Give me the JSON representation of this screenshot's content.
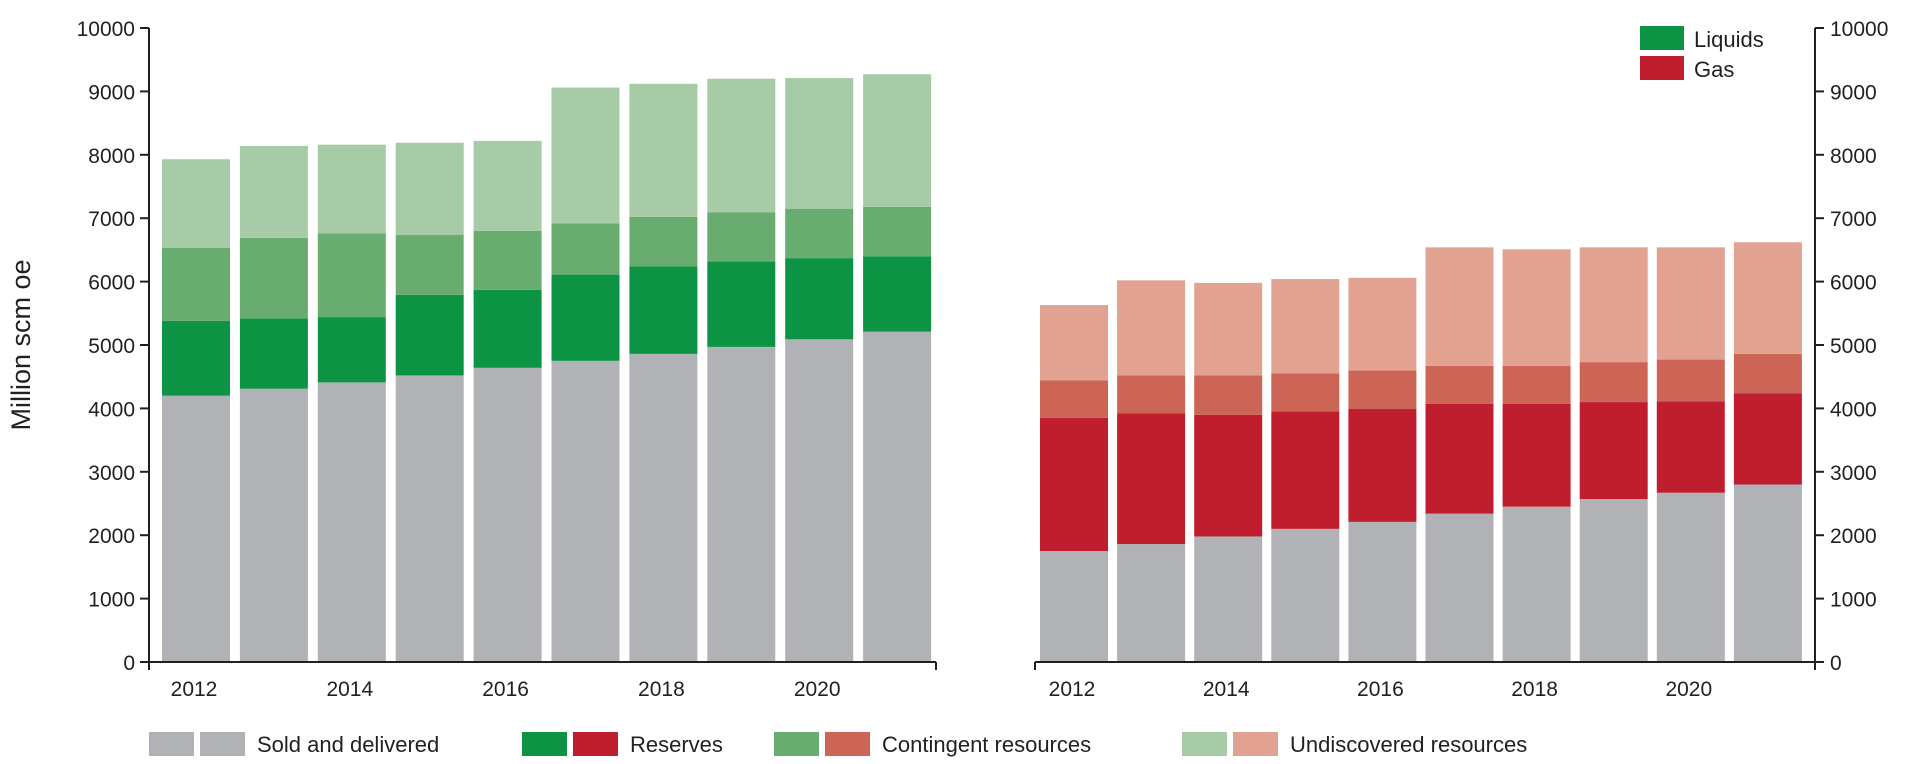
{
  "chart_data": [
    {
      "type": "bar",
      "stacked": true,
      "panel": "Liquids",
      "categories": [
        2012,
        2013,
        2014,
        2015,
        2016,
        2017,
        2018,
        2019,
        2020,
        2021
      ],
      "tick_labels": [
        "2012",
        "2014",
        "2016",
        "2018",
        "2020"
      ],
      "ylabel": "Million scm oe",
      "ylim": [
        0,
        10000
      ],
      "yticks": [
        "0",
        "1000",
        "2000",
        "3000",
        "4000",
        "5000",
        "6000",
        "7000",
        "8000",
        "9000",
        "10000"
      ],
      "y_axis_side": "left",
      "series": [
        {
          "name": "Sold and delivered",
          "color": "#b1b2b6",
          "values": [
            4200,
            4310,
            4410,
            4520,
            4640,
            4750,
            4860,
            4970,
            5090,
            5210
          ]
        },
        {
          "name": "Reserves",
          "color": "#0c9444",
          "values": [
            1180,
            1110,
            1030,
            1270,
            1230,
            1360,
            1380,
            1350,
            1280,
            1190
          ]
        },
        {
          "name": "Contingent resources",
          "color": "#68ad6f",
          "values": [
            1150,
            1270,
            1320,
            950,
            930,
            810,
            780,
            770,
            780,
            780
          ]
        },
        {
          "name": "Undiscovered resources",
          "color": "#a6cba6",
          "values": [
            1400,
            1450,
            1400,
            1450,
            1420,
            2140,
            2100,
            2110,
            2060,
            2090
          ]
        }
      ]
    },
    {
      "type": "bar",
      "stacked": true,
      "panel": "Gas",
      "categories": [
        2012,
        2013,
        2014,
        2015,
        2016,
        2017,
        2018,
        2019,
        2020,
        2021
      ],
      "tick_labels": [
        "2012",
        "2014",
        "2016",
        "2018",
        "2020"
      ],
      "ylim": [
        0,
        10000
      ],
      "yticks": [
        "0",
        "1000",
        "2000",
        "3000",
        "4000",
        "5000",
        "6000",
        "7000",
        "8000",
        "9000",
        "10000"
      ],
      "y_axis_side": "right",
      "series": [
        {
          "name": "Sold and delivered",
          "color": "#b1b2b6",
          "values": [
            1750,
            1860,
            1980,
            2100,
            2210,
            2340,
            2450,
            2570,
            2670,
            2800
          ]
        },
        {
          "name": "Reserves",
          "color": "#be1e2d",
          "values": [
            2100,
            2060,
            1920,
            1850,
            1780,
            1730,
            1620,
            1530,
            1440,
            1440
          ]
        },
        {
          "name": "Contingent resources",
          "color": "#cd6556",
          "values": [
            590,
            600,
            620,
            600,
            610,
            600,
            600,
            630,
            660,
            620
          ]
        },
        {
          "name": "Undiscovered resources",
          "color": "#e2a291",
          "values": [
            1190,
            1500,
            1460,
            1490,
            1460,
            1870,
            1840,
            1810,
            1770,
            1760
          ]
        }
      ]
    }
  ],
  "legend_top": {
    "placement": "top-right",
    "items": [
      {
        "label": "Liquids",
        "color": "#0c9444"
      },
      {
        "label": "Gas",
        "color": "#be1e2d"
      }
    ]
  },
  "legend_bottom": {
    "placement": "bottom",
    "items": [
      {
        "label": "Sold and delivered",
        "colors": [
          "#b1b2b6",
          "#b1b2b6"
        ]
      },
      {
        "label": "Reserves",
        "colors": [
          "#0c9444",
          "#be1e2d"
        ]
      },
      {
        "label": "Contingent resources",
        "colors": [
          "#68ad6f",
          "#cd6556"
        ]
      },
      {
        "label": "Undiscovered resources",
        "colors": [
          "#a6cba6",
          "#e2a291"
        ]
      }
    ]
  }
}
